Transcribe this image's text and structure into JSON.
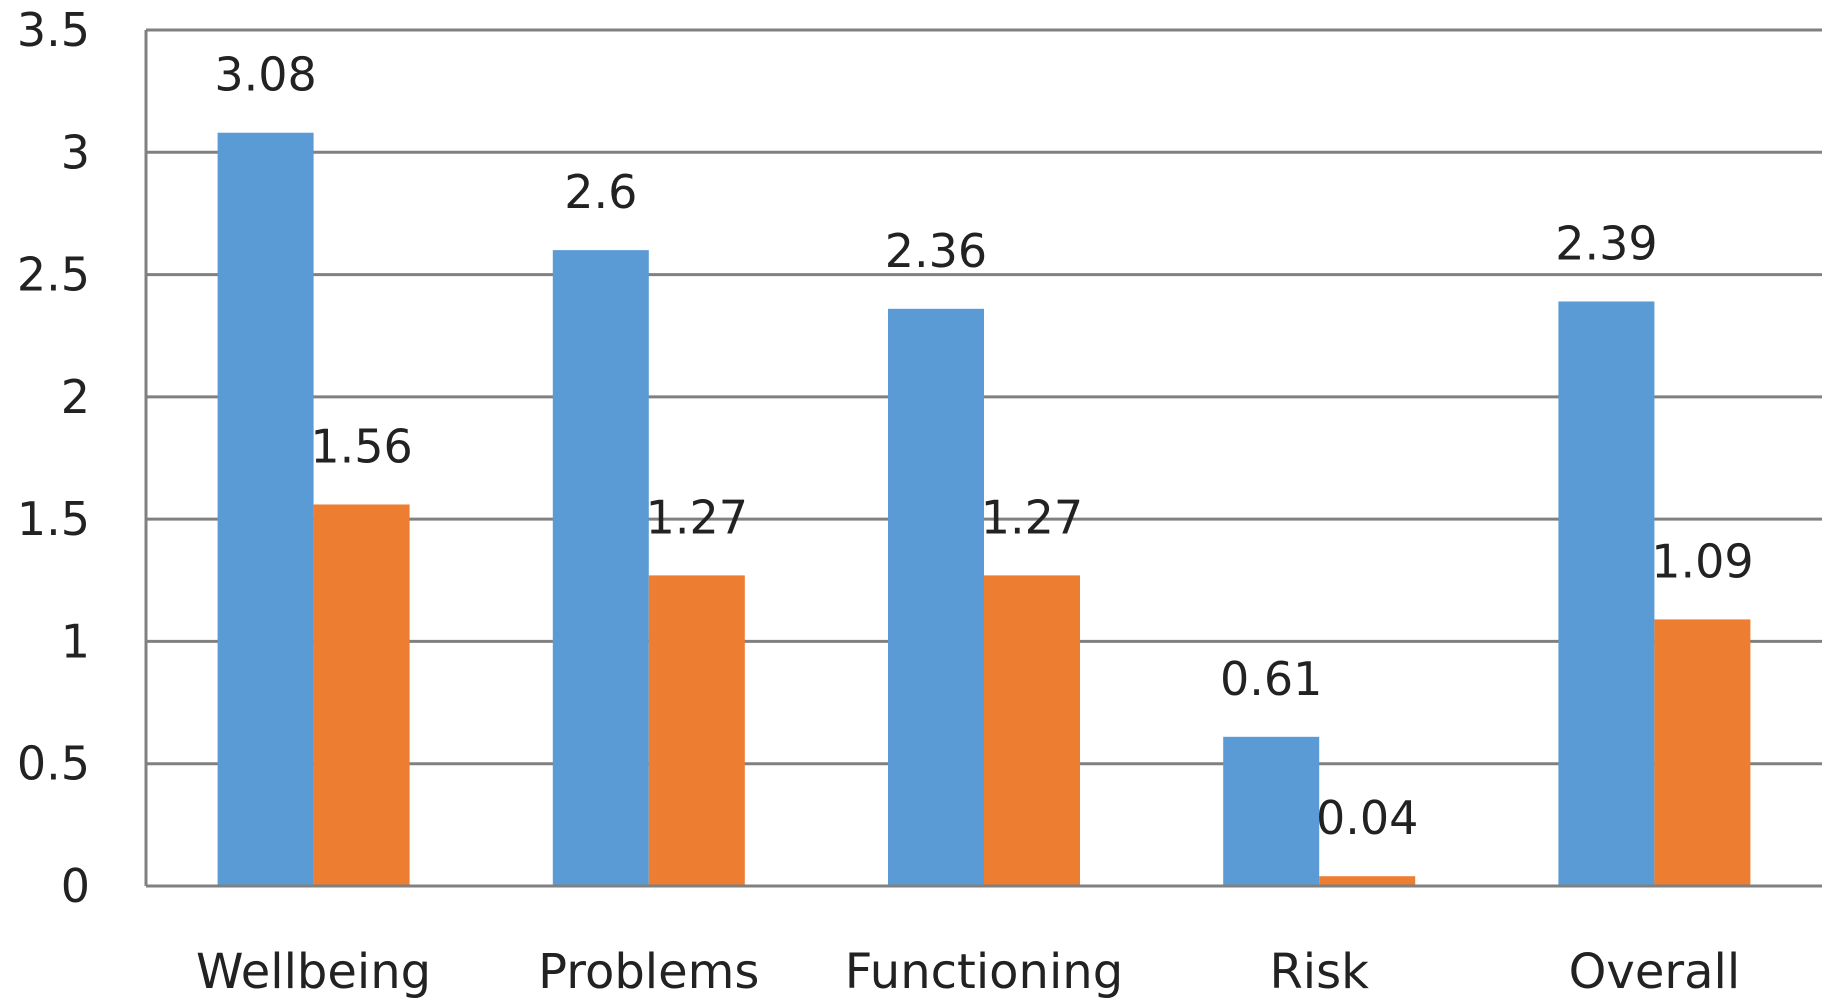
{
  "chart_data": {
    "type": "bar",
    "categories": [
      "Wellbeing",
      "Problems",
      "Functioning",
      "Risk",
      "Overall"
    ],
    "series": [
      {
        "values": [
          3.08,
          2.6,
          2.36,
          0.61,
          2.39
        ],
        "color": "#5b9bd5"
      },
      {
        "values": [
          1.56,
          1.27,
          1.27,
          0.04,
          1.09
        ],
        "color": "#ed7d31"
      }
    ],
    "data_labels": [
      [
        "3.08",
        "2.6",
        "2.36",
        "0.61",
        "2.39"
      ],
      [
        "1.56",
        "1.27",
        "1.27",
        "0.04",
        "1.09"
      ]
    ],
    "y_ticks": [
      "0",
      "0.5",
      "1",
      "1.5",
      "2",
      "2.5",
      "3",
      "3.5"
    ],
    "ylim": [
      0,
      3.5
    ],
    "grid": true,
    "legend": "none",
    "gridline_color": "#808080"
  }
}
